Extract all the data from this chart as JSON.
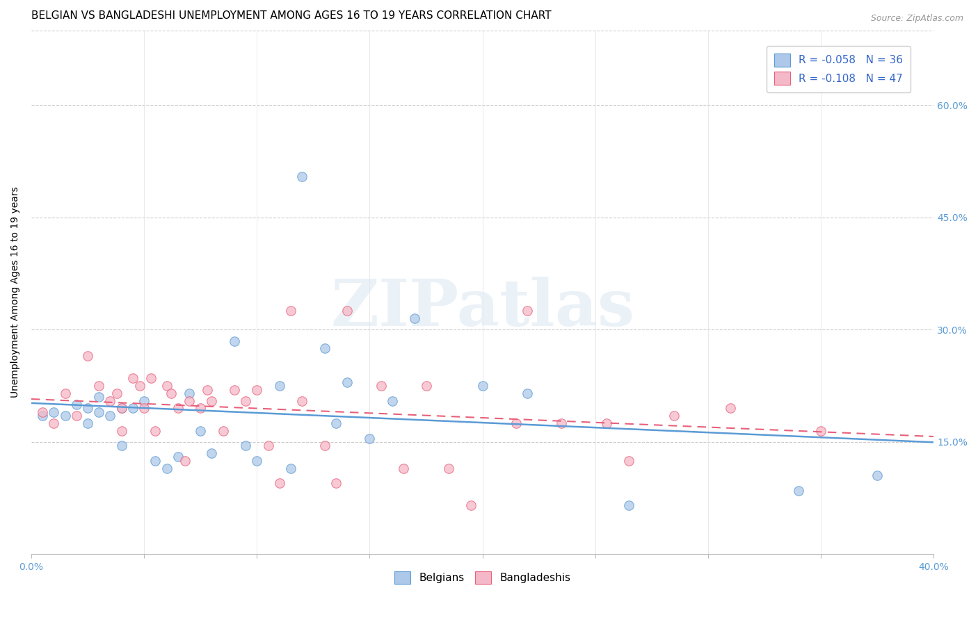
{
  "title": "BELGIAN VS BANGLADESHI UNEMPLOYMENT AMONG AGES 16 TO 19 YEARS CORRELATION CHART",
  "source": "Source: ZipAtlas.com",
  "ylabel": "Unemployment Among Ages 16 to 19 years",
  "xlim": [
    0.0,
    0.4
  ],
  "ylim": [
    0.0,
    0.7
  ],
  "background_color": "#ffffff",
  "watermark_text": "ZIPatlas",
  "belgian_fill_color": "#adc8e8",
  "bangladeshi_fill_color": "#f5b8c8",
  "belgian_line_color": "#5b9bd5",
  "bangladeshi_line_color": "#e8607a",
  "legend_r_belgian": "R = -0.058",
  "legend_n_belgian": "N = 36",
  "legend_r_bangladeshi": "R = -0.108",
  "legend_n_bangladeshi": "N = 47",
  "belgians_x": [
    0.005,
    0.01,
    0.015,
    0.02,
    0.025,
    0.025,
    0.03,
    0.03,
    0.035,
    0.04,
    0.04,
    0.045,
    0.05,
    0.055,
    0.06,
    0.065,
    0.07,
    0.075,
    0.08,
    0.09,
    0.095,
    0.1,
    0.11,
    0.115,
    0.12,
    0.13,
    0.135,
    0.14,
    0.15,
    0.16,
    0.17,
    0.2,
    0.22,
    0.265,
    0.34,
    0.375
  ],
  "belgians_y": [
    0.185,
    0.19,
    0.185,
    0.2,
    0.195,
    0.175,
    0.21,
    0.19,
    0.185,
    0.195,
    0.145,
    0.195,
    0.205,
    0.125,
    0.115,
    0.13,
    0.215,
    0.165,
    0.135,
    0.285,
    0.145,
    0.125,
    0.225,
    0.115,
    0.505,
    0.275,
    0.175,
    0.23,
    0.155,
    0.205,
    0.315,
    0.225,
    0.215,
    0.065,
    0.085,
    0.105
  ],
  "bangladeshis_x": [
    0.005,
    0.01,
    0.015,
    0.02,
    0.025,
    0.03,
    0.035,
    0.038,
    0.04,
    0.04,
    0.045,
    0.048,
    0.05,
    0.053,
    0.055,
    0.06,
    0.062,
    0.065,
    0.068,
    0.07,
    0.075,
    0.078,
    0.08,
    0.085,
    0.09,
    0.095,
    0.1,
    0.105,
    0.11,
    0.115,
    0.12,
    0.13,
    0.135,
    0.14,
    0.155,
    0.165,
    0.175,
    0.185,
    0.195,
    0.215,
    0.22,
    0.235,
    0.255,
    0.265,
    0.285,
    0.31,
    0.35
  ],
  "bangladeshis_y": [
    0.19,
    0.175,
    0.215,
    0.185,
    0.265,
    0.225,
    0.205,
    0.215,
    0.195,
    0.165,
    0.235,
    0.225,
    0.195,
    0.235,
    0.165,
    0.225,
    0.215,
    0.195,
    0.125,
    0.205,
    0.195,
    0.22,
    0.205,
    0.165,
    0.22,
    0.205,
    0.22,
    0.145,
    0.095,
    0.325,
    0.205,
    0.145,
    0.095,
    0.325,
    0.225,
    0.115,
    0.225,
    0.115,
    0.065,
    0.175,
    0.325,
    0.175,
    0.175,
    0.125,
    0.185,
    0.195,
    0.165
  ],
  "title_fontsize": 11,
  "axis_label_fontsize": 10,
  "tick_fontsize": 10,
  "legend_fontsize": 11,
  "marker_size": 95,
  "marker_alpha": 0.75
}
